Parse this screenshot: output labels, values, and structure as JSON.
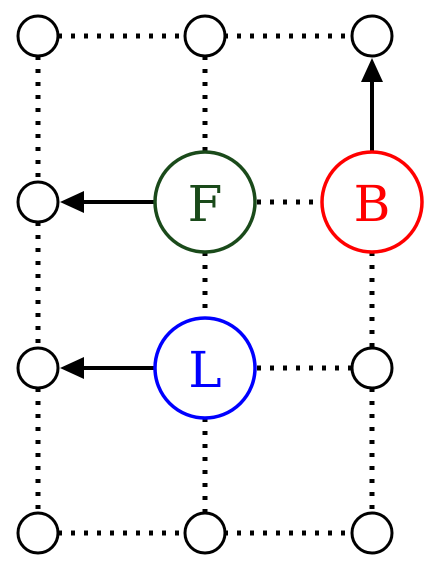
{
  "diagram": {
    "nodes": {
      "F": {
        "label": "F",
        "color": "#1a4a1a"
      },
      "B": {
        "label": "B",
        "color": "#ff0000"
      },
      "L": {
        "label": "L",
        "color": "#0000ff"
      }
    }
  }
}
